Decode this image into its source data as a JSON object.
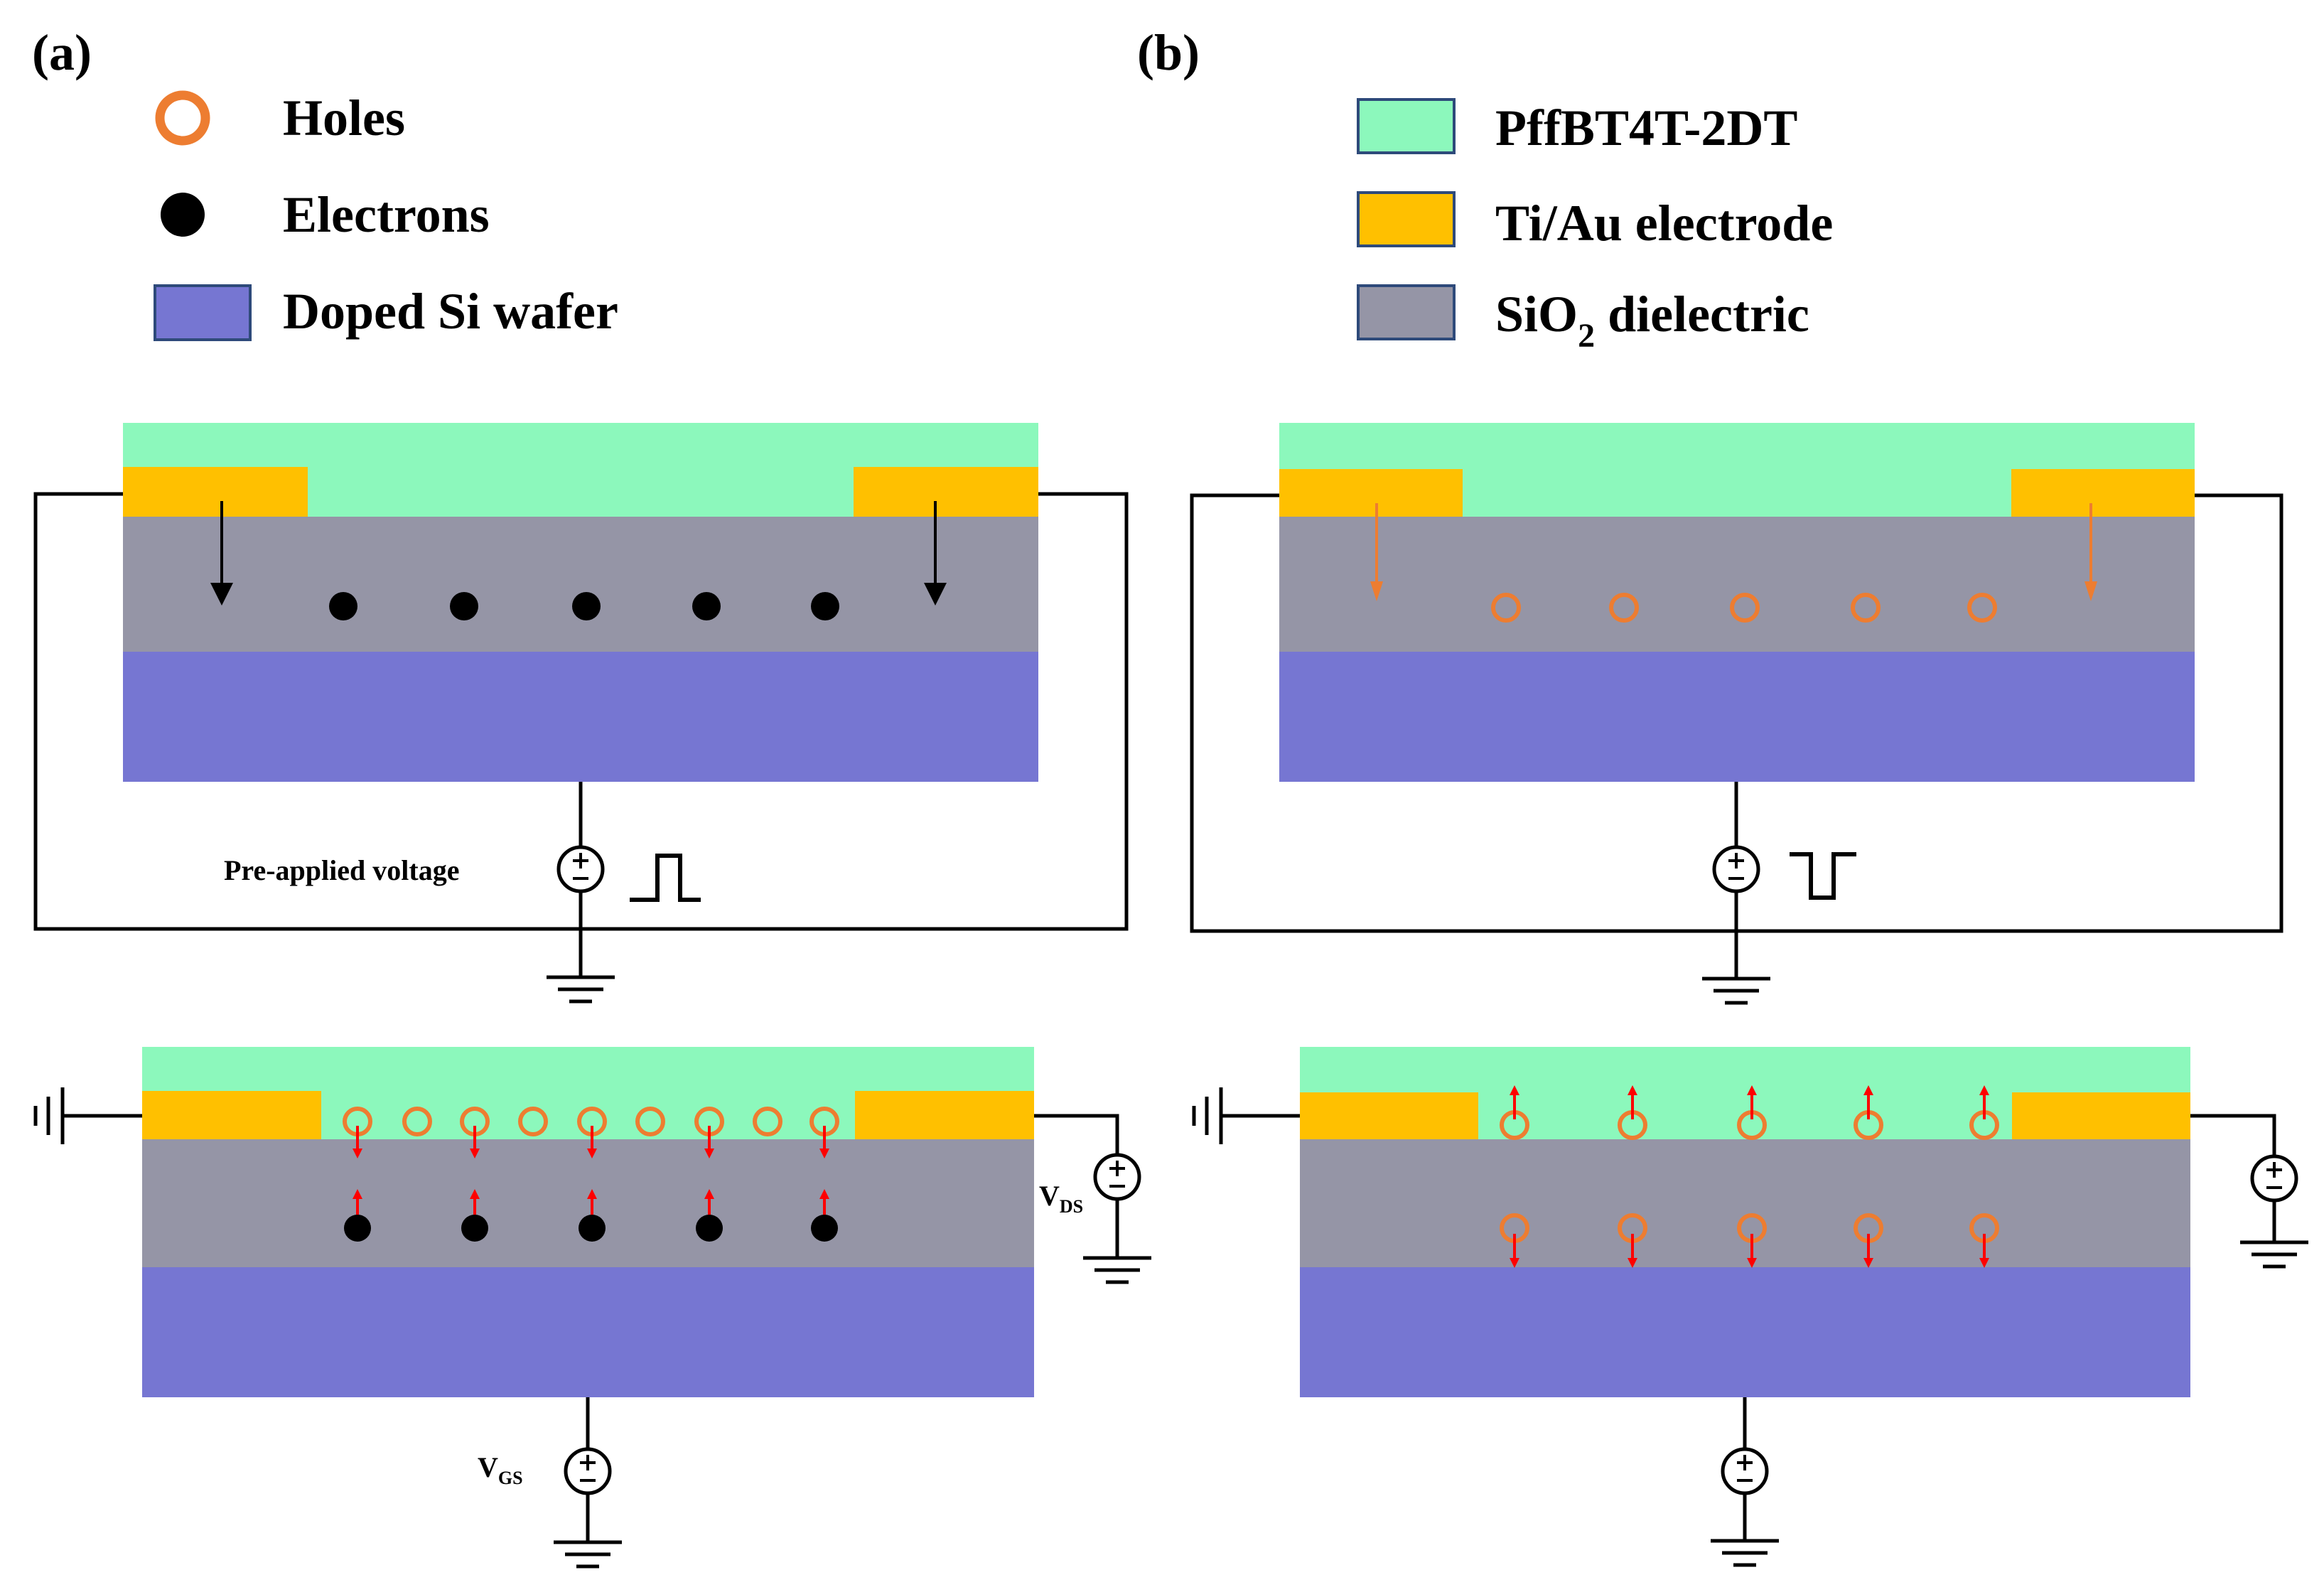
{
  "colors": {
    "polymer": "#8cf8bc",
    "electrode": "#ffc000",
    "dielectric": "#9595a6",
    "wafer": "#7676d2",
    "hole": "#ed7d31",
    "electron": "#000000",
    "field_arrow_red": "#ff0000",
    "wire": "#000000"
  },
  "panels": {
    "a": {
      "label": "(a)"
    },
    "b": {
      "label": "(b)"
    }
  },
  "legend_a": [
    {
      "symbol": "hole-circle",
      "text": "Holes"
    },
    {
      "symbol": "electron-dot",
      "text": "Electrons"
    },
    {
      "symbol": "wafer-swatch",
      "text": "Doped Si wafer"
    }
  ],
  "legend_b": [
    {
      "symbol": "polymer-swatch",
      "text": "PffBT4T-2DT"
    },
    {
      "symbol": "electrode-swatch",
      "text": "Ti/Au electrode"
    },
    {
      "symbol": "dielectric-swatch",
      "text": "SiO",
      "subscript": "2",
      "suffix": " dielectric"
    }
  ],
  "circuit_labels": {
    "pre_applied": "Pre-applied  voltage",
    "vds_main": "V",
    "vds_sub": "DS",
    "vgs_main": "V",
    "vgs_sub": "GS",
    "plus": "+",
    "minus": "−"
  },
  "icons": {
    "source": "dc-voltage-source-icon",
    "ground": "ground-icon",
    "pulse_positive": "positive-pulse-icon",
    "pulse_negative": "negative-pulse-icon"
  }
}
